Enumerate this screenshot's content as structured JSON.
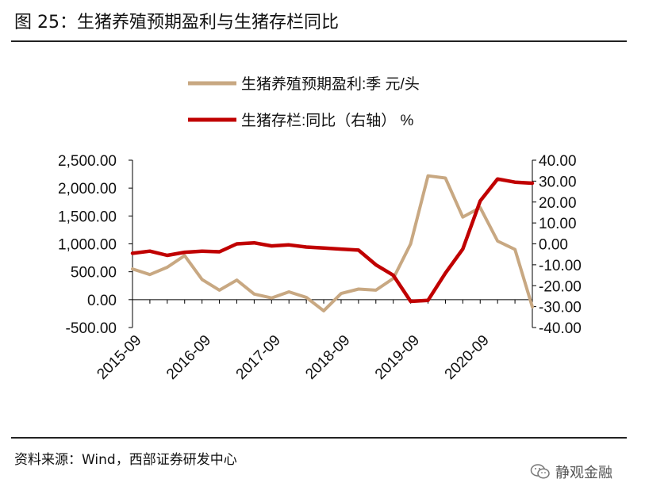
{
  "figure": {
    "title": "图 25：生猪养殖预期盈利与生猪存栏同比",
    "source": "资料来源：Wind，西部证券研发中心",
    "watermark": "静观金融",
    "watermark_icon": "wechat-icon"
  },
  "chart_data": {
    "type": "line",
    "colors": {
      "profit": "#c8a882",
      "inventory": "#c00000"
    },
    "x_tick_labels": [
      "2015-09",
      "2016-09",
      "2017-09",
      "2018-09",
      "2019-09",
      "2020-09"
    ],
    "x_range": [
      "2015-09",
      "2021-06"
    ],
    "left_axis": {
      "ylim": [
        -500,
        2500
      ],
      "ticks": [
        -500,
        0,
        500,
        1000,
        1500,
        2000,
        2500
      ],
      "tick_labels": [
        "-500.00",
        "0.00",
        "500.00",
        "1,000.00",
        "1,500.00",
        "2,000.00",
        "2,500.00"
      ]
    },
    "right_axis": {
      "ylim": [
        -40,
        40
      ],
      "ticks": [
        -40,
        -30,
        -20,
        -10,
        0,
        10,
        20,
        30,
        40
      ],
      "tick_labels": [
        "-40.00",
        "-30.00",
        "-20.00",
        "-10.00",
        "0.00",
        "10.00",
        "20.00",
        "30.00",
        "40.00"
      ]
    },
    "legend_position": "top-center",
    "series": [
      {
        "name": "生猪养殖预期盈利:季 元/头",
        "axis": "left",
        "x": [
          "2015-09",
          "2015-12",
          "2016-03",
          "2016-06",
          "2016-09",
          "2016-12",
          "2017-03",
          "2017-06",
          "2017-09",
          "2017-12",
          "2018-03",
          "2018-06",
          "2018-09",
          "2018-12",
          "2019-03",
          "2019-06",
          "2019-09",
          "2019-12",
          "2020-03",
          "2020-06",
          "2020-09",
          "2020-12",
          "2021-03",
          "2021-06"
        ],
        "values": [
          550,
          450,
          580,
          790,
          360,
          170,
          350,
          100,
          30,
          140,
          40,
          -200,
          110,
          190,
          170,
          380,
          1000,
          2220,
          2180,
          1480,
          1650,
          1050,
          900,
          -130
        ]
      },
      {
        "name": "生猪存栏:同比（右轴） %",
        "axis": "right",
        "x": [
          "2015-09",
          "2015-12",
          "2016-03",
          "2016-06",
          "2016-09",
          "2016-12",
          "2017-03",
          "2017-06",
          "2017-09",
          "2017-12",
          "2018-03",
          "2018-06",
          "2018-09",
          "2018-12",
          "2019-03",
          "2019-06",
          "2019-09",
          "2019-12",
          "2020-03",
          "2020-06",
          "2020-09",
          "2020-12",
          "2021-03",
          "2021-06"
        ],
        "values": [
          -4.5,
          -3.5,
          -5.5,
          -4.0,
          -3.5,
          -3.8,
          0.0,
          0.5,
          -1.0,
          -0.5,
          -1.5,
          -2.0,
          -2.5,
          -3.0,
          -10.0,
          -15.0,
          -27.5,
          -27.0,
          -14.0,
          -2.5,
          20.5,
          31.0,
          29.5,
          29.0
        ]
      }
    ]
  }
}
